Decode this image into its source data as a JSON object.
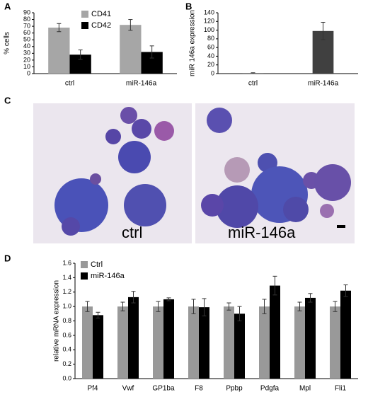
{
  "panel_labels": [
    "A",
    "B",
    "C",
    "D"
  ],
  "micrograph_labels": [
    "ctrl",
    "miR-146a"
  ],
  "chart_data": [
    {
      "type": "bar",
      "y_label": "% cells",
      "categories": [
        "ctrl",
        "miR-146a"
      ],
      "series": [
        {
          "name": "CD41",
          "color": "#a6a6a6",
          "values": [
            68,
            72
          ],
          "errors": [
            6,
            8
          ]
        },
        {
          "name": "CD42",
          "color": "#000000",
          "values": [
            28,
            32
          ],
          "errors": [
            7,
            9
          ]
        }
      ],
      "ylim": [
        0,
        90
      ],
      "yticks": [
        0,
        10,
        20,
        30,
        40,
        50,
        60,
        70,
        80,
        90
      ],
      "legend": "top"
    },
    {
      "type": "bar",
      "y_label": "miR 146a expression",
      "categories": [
        "ctrl",
        "miR-146a"
      ],
      "series": [
        {
          "color": "#404040",
          "values": [
            1,
            98
          ],
          "errors": [
            1,
            20
          ]
        }
      ],
      "ylim": [
        0,
        140
      ],
      "yticks": [
        0,
        20,
        40,
        60,
        80,
        100,
        120,
        140
      ]
    },
    {
      "type": "bar",
      "y_label": "relative mRNA expression",
      "categories": [
        "Pf4",
        "Vwf",
        "GP1ba",
        "F8",
        "Ppbp",
        "Pdgfa",
        "Mpl",
        "Fli1"
      ],
      "series": [
        {
          "name": "Ctrl",
          "color": "#999999",
          "values": [
            1.0,
            1.0,
            1.0,
            1.0,
            1.0,
            1.0,
            1.0,
            1.0
          ],
          "errors": [
            0.07,
            0.06,
            0.07,
            0.1,
            0.05,
            0.1,
            0.06,
            0.07
          ]
        },
        {
          "name": "miR-146a",
          "color": "#000000",
          "values": [
            0.88,
            1.13,
            1.1,
            0.99,
            0.9,
            1.29,
            1.12,
            1.22
          ],
          "errors": [
            0.04,
            0.08,
            0.02,
            0.12,
            0.1,
            0.13,
            0.06,
            0.08
          ]
        }
      ],
      "ylim": [
        0,
        1.6
      ],
      "yticks": [
        {
          "value": 0,
          "label": "0.0"
        },
        0.2,
        0.4,
        0.6,
        0.8,
        {
          "value": 1,
          "label": "1.0"
        },
        1.2,
        1.4,
        1.6
      ],
      "legend": "top-left"
    }
  ]
}
